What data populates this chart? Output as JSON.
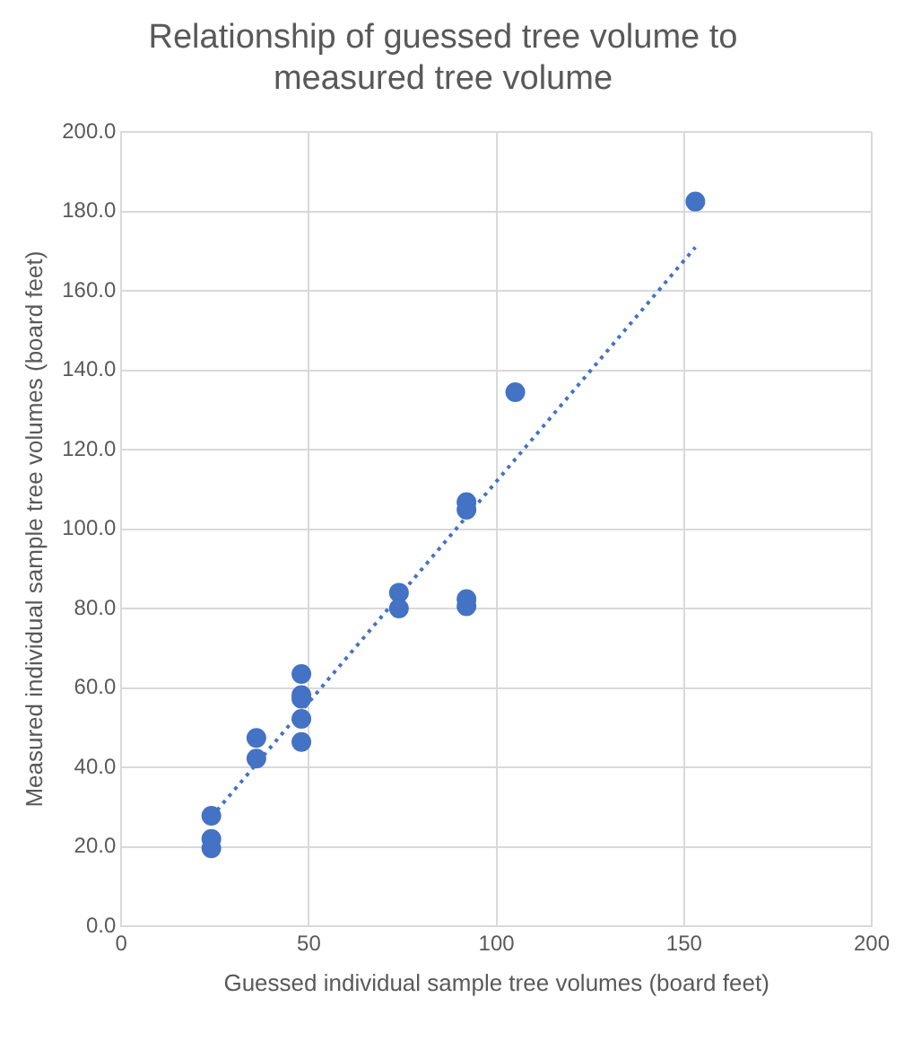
{
  "chart_data": {
    "type": "scatter",
    "title": "Relationship of guessed tree volume to measured tree volume",
    "xlabel": "Guessed individual sample tree volumes (board feet)",
    "ylabel": "Measured individual sample tree volumes (board feet)",
    "series": [
      {
        "color": "#4472c4",
        "x": [
          153,
          105,
          92,
          92,
          92,
          92,
          74,
          74,
          48,
          48,
          48,
          48,
          48,
          36,
          36,
          24,
          24,
          24
        ],
        "values": [
          182.5,
          134.5,
          106.8,
          104.9,
          82.4,
          80.6,
          84,
          80,
          63.5,
          58.2,
          57.3,
          52.2,
          46.4,
          47.4,
          42.2,
          27.8,
          22,
          19.6
        ]
      },
      {
        "type": "line",
        "color": "#4472c4",
        "line_style": "dotted",
        "marker": "none",
        "x": [
          24,
          153
        ],
        "values": [
          27.5,
          171
        ]
      }
    ],
    "xlim": [
      0,
      200
    ],
    "xticks": [
      0,
      50,
      100,
      150,
      200
    ],
    "ylim": [
      0,
      200
    ],
    "yticks": [
      {
        "value": 0,
        "label": "0.0"
      },
      {
        "value": 20,
        "label": "20.0"
      },
      {
        "value": 40,
        "label": "40.0"
      },
      {
        "value": 60,
        "label": "60.0"
      },
      {
        "value": 80,
        "label": "80.0"
      },
      {
        "value": 100,
        "label": "100.0"
      },
      {
        "value": 120,
        "label": "120.0"
      },
      {
        "value": 140,
        "label": "140.0"
      },
      {
        "value": 160,
        "label": "160.0"
      },
      {
        "value": 180,
        "label": "180.0"
      },
      {
        "value": 200,
        "label": "200.0"
      }
    ],
    "grid": true,
    "legend": false,
    "marker": "circle"
  }
}
